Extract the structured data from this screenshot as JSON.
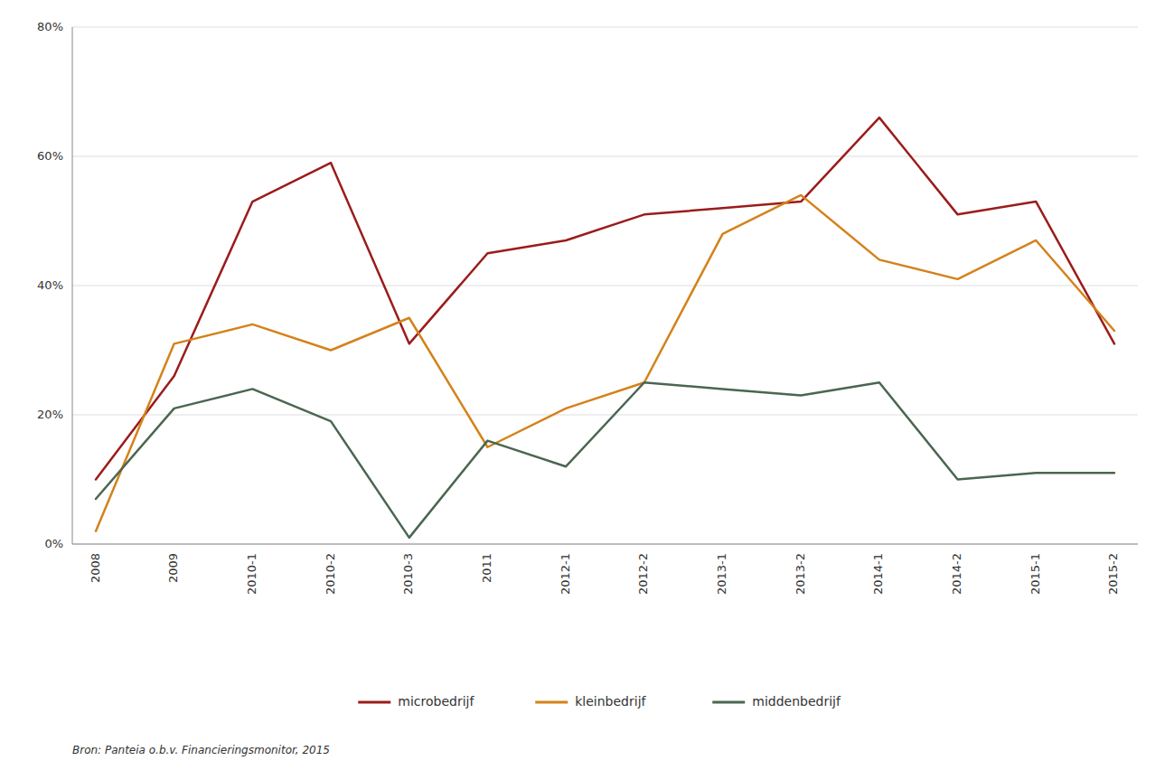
{
  "chart_data": {
    "type": "line",
    "categories": [
      "2008",
      "2009",
      "2010-1",
      "2010-2",
      "2010-3",
      "2011",
      "2012-1",
      "2012-2",
      "2013-1",
      "2013-2",
      "2014-1",
      "2014-2",
      "2015-1",
      "2015-2"
    ],
    "series": [
      {
        "name": "microbedrijf",
        "color": "#9B1C1C",
        "values": [
          10,
          26,
          53,
          59,
          31,
          45,
          47,
          51,
          52,
          53,
          66,
          51,
          53,
          31
        ]
      },
      {
        "name": "kleinbedrijf",
        "color": "#D4821A",
        "values": [
          2,
          31,
          34,
          30,
          35,
          15,
          21,
          25,
          48,
          54,
          44,
          41,
          47,
          33
        ]
      },
      {
        "name": "middenbedrijf",
        "color": "#4A6650",
        "values": [
          7,
          21,
          24,
          19,
          1,
          16,
          12,
          25,
          24,
          23,
          25,
          10,
          11,
          11
        ]
      }
    ],
    "ylim": [
      0,
      80
    ],
    "yticks": [
      {
        "value": 0,
        "label": "0%"
      },
      {
        "value": 20,
        "label": "20%"
      },
      {
        "value": 40,
        "label": "40%"
      },
      {
        "value": 60,
        "label": "60%"
      },
      {
        "value": 80,
        "label": "80%"
      }
    ],
    "grid": true,
    "legend": "bottom",
    "source": "Bron: Panteia o.b.v. Financieringsmonitor, 2015"
  }
}
